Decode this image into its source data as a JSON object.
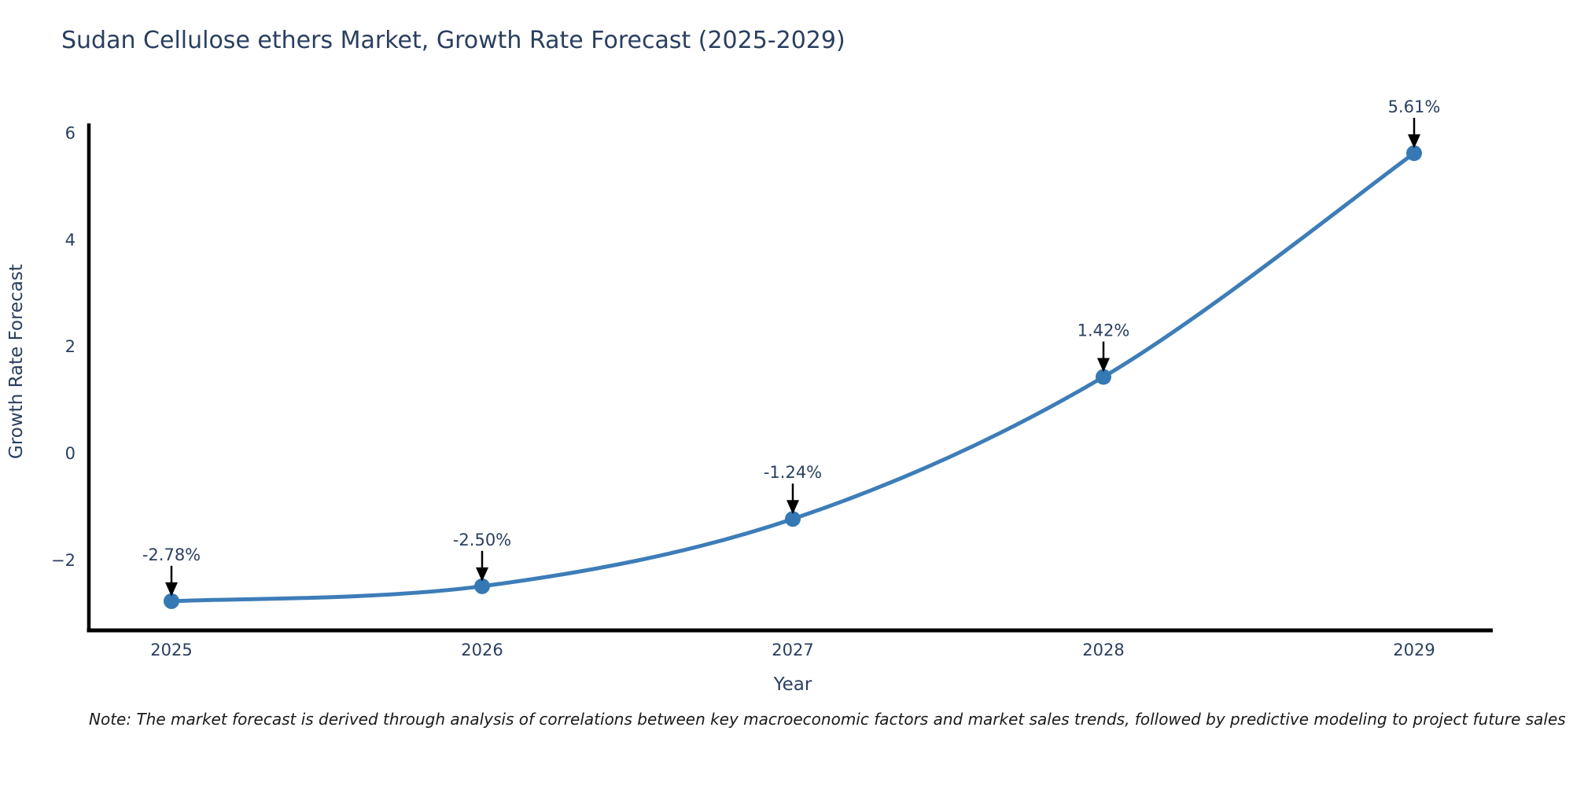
{
  "title": "Sudan Cellulose ethers Market, Growth Rate Forecast (2025-2029)",
  "note": "Note: The market forecast is derived through analysis of correlations between key macroeconomic factors and market sales trends, followed by predictive modeling to project future sales",
  "chart_data": {
    "type": "line",
    "title": "Sudan Cellulose ethers Market, Growth Rate Forecast (2025-2029)",
    "xlabel": "Year",
    "ylabel": "Growth Rate Forecast",
    "x": [
      "2025",
      "2026",
      "2027",
      "2028",
      "2029"
    ],
    "series": [
      {
        "name": "Growth Rate Forecast",
        "values": [
          -2.78,
          -2.5,
          -1.24,
          1.42,
          5.61
        ]
      }
    ],
    "point_labels": [
      "-2.78%",
      "-2.50%",
      "-1.24%",
      "1.42%",
      "5.61%"
    ],
    "yticks": [
      6,
      4,
      2,
      0,
      -2
    ],
    "ytick_labels": [
      "6",
      "4",
      "2",
      "0",
      "−2"
    ],
    "ylim": [
      -3.4,
      6.2
    ],
    "grid": false,
    "legend": false,
    "line_style": "spline",
    "annotation_arrows": true,
    "colors": {
      "line": "#3d7db8",
      "marker": "#3579b4",
      "axis": "#000000",
      "text": "#2a3f5f",
      "arrow": "#000000",
      "background": "#ffffff"
    }
  }
}
